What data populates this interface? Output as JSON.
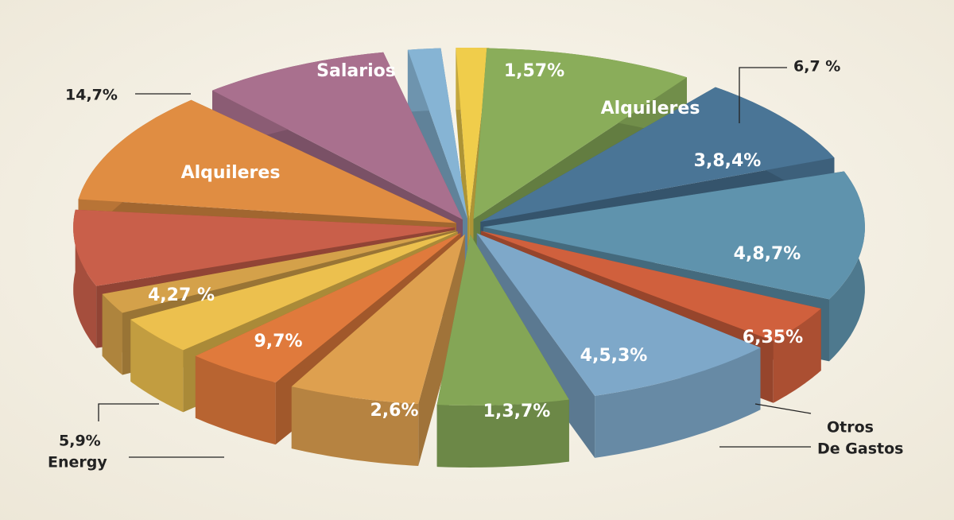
{
  "slice_labels": [
    "1,57%",
    "Alquileres",
    "3,8,4%",
    "4,8,7%",
    "6,35%",
    "4,5,3%",
    "1,3,7%",
    "2,6%",
    "9,7%",
    "4,27 %",
    "Alquileres",
    "Salarios"
  ],
  "callouts": [
    "6,7 %",
    "14,7%",
    "5,9%",
    "Energy",
    "Otros",
    "De Gastos"
  ]
}
